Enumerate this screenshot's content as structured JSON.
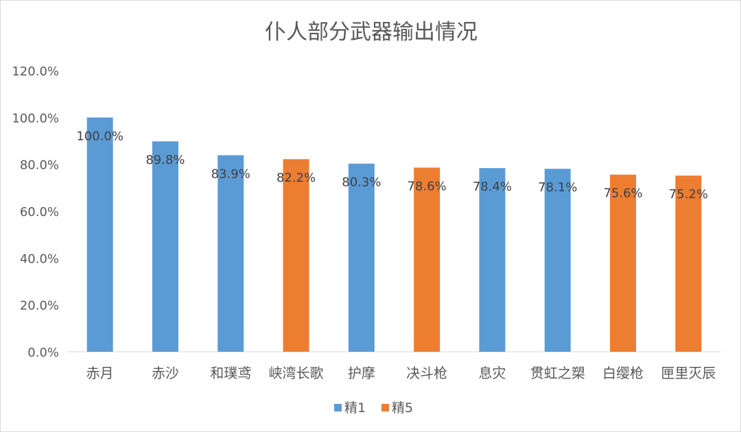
{
  "chart_data": {
    "type": "bar",
    "title": "仆人部分武器输出情况",
    "categories": [
      "赤月",
      "赤沙",
      "和璞鸢",
      "峡湾长歌",
      "护摩",
      "决斗枪",
      "息灾",
      "贯虹之槊",
      "白缨枪",
      "匣里灭辰"
    ],
    "values": [
      100.0,
      89.8,
      83.9,
      82.2,
      80.3,
      78.6,
      78.4,
      78.1,
      75.6,
      75.2
    ],
    "data_labels": [
      "100.0%",
      "89.8%",
      "83.9%",
      "82.2%",
      "80.3%",
      "78.6%",
      "78.4%",
      "78.1%",
      "75.6%",
      "75.2%"
    ],
    "series_index": [
      0,
      0,
      0,
      1,
      0,
      1,
      0,
      0,
      1,
      1
    ],
    "series": [
      {
        "name": "精1",
        "color": "#5b9bd5"
      },
      {
        "name": "精5",
        "color": "#ed7d31"
      }
    ],
    "ylim": [
      0,
      120
    ],
    "yticks": [
      0,
      20,
      40,
      60,
      80,
      100,
      120
    ],
    "ytick_labels": [
      "0.0%",
      "20.0%",
      "40.0%",
      "60.0%",
      "80.0%",
      "100.0%",
      "120.0%"
    ],
    "grid": false,
    "legend": "bottom-center"
  }
}
